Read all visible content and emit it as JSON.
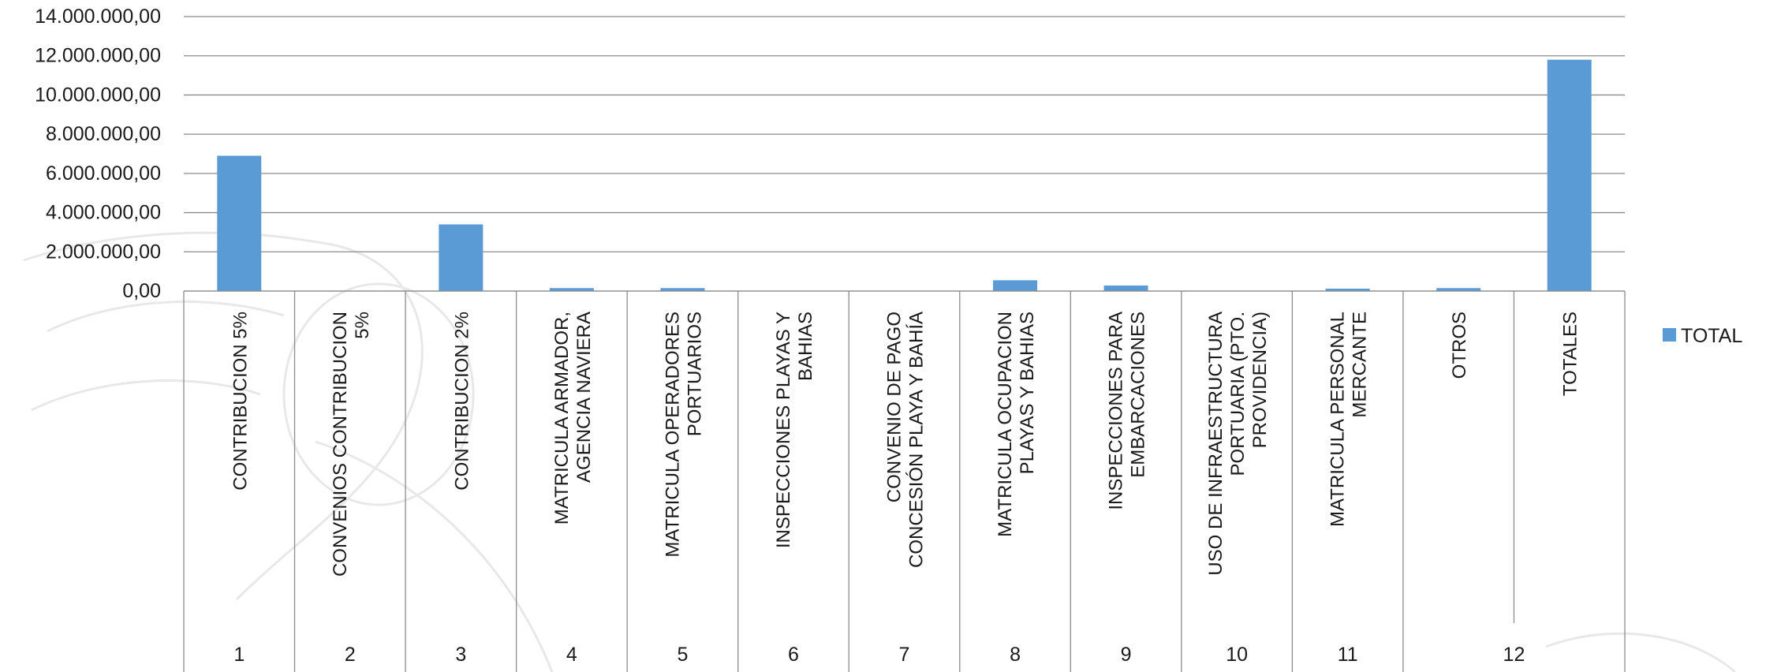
{
  "chart_data": {
    "type": "bar",
    "series": [
      {
        "name": "TOTAL",
        "color": "#5b9bd5",
        "values": [
          6900000,
          0,
          3400000,
          150000,
          150000,
          0,
          0,
          550000,
          280000,
          0,
          120000,
          150000,
          11800000
        ]
      }
    ],
    "categories": [
      {
        "group": "1",
        "label": [
          "CONTRIBUCION 5%"
        ]
      },
      {
        "group": "2",
        "label": [
          "CONVENIOS CONTRIBUCION",
          "5%"
        ]
      },
      {
        "group": "3",
        "label": [
          "CONTRIBUCION 2%"
        ]
      },
      {
        "group": "4",
        "label": [
          "MATRICULA ARMADOR,",
          "AGENCIA NAVIERA"
        ]
      },
      {
        "group": "5",
        "label": [
          "MATRICULA OPERADORES",
          "PORTUARIOS"
        ]
      },
      {
        "group": "6",
        "label": [
          "INSPECCIONES PLAYAS Y",
          "BAHIAS"
        ]
      },
      {
        "group": "7",
        "label": [
          "CONVENIO DE PAGO",
          "CONCESIÓN PLAYA Y BAHÍA"
        ]
      },
      {
        "group": "8",
        "label": [
          "MATRICULA OCUPACION",
          "PLAYAS Y BAHIAS"
        ]
      },
      {
        "group": "9",
        "label": [
          "INSPECCIONES PARA",
          "EMBARCACIONES"
        ]
      },
      {
        "group": "10",
        "label": [
          "USO DE INFRAESTRUCTURA",
          "PORTUARIA (PTO.",
          "PROVIDENCIA)"
        ]
      },
      {
        "group": "11",
        "label": [
          "MATRICULA PERSONAL",
          "MERCANTE"
        ]
      },
      {
        "group": "12",
        "label": [
          "OTROS"
        ]
      },
      {
        "group": "",
        "label": [
          "TOTALES"
        ]
      }
    ],
    "group_labels": [
      {
        "text": "1",
        "span": [
          0,
          0
        ]
      },
      {
        "text": "2",
        "span": [
          1,
          1
        ]
      },
      {
        "text": "3",
        "span": [
          2,
          2
        ]
      },
      {
        "text": "4",
        "span": [
          3,
          3
        ]
      },
      {
        "text": "5",
        "span": [
          4,
          4
        ]
      },
      {
        "text": "6",
        "span": [
          5,
          5
        ]
      },
      {
        "text": "7",
        "span": [
          6,
          6
        ]
      },
      {
        "text": "8",
        "span": [
          7,
          7
        ]
      },
      {
        "text": "9",
        "span": [
          8,
          8
        ]
      },
      {
        "text": "10",
        "span": [
          9,
          9
        ]
      },
      {
        "text": "11",
        "span": [
          10,
          10
        ]
      },
      {
        "text": "12",
        "span": [
          11,
          12
        ]
      }
    ],
    "yticks": [
      "0,00",
      "2.000.000,00",
      "4.000.000,00",
      "6.000.000,00",
      "8.000.000,00",
      "10.000.000,00",
      "12.000.000,00",
      "14.000.000,00"
    ],
    "ylim": [
      0,
      14000000
    ],
    "ytick_step": 2000000,
    "grid": true,
    "legend_position": "right",
    "title": "",
    "xlabel": "",
    "ylabel": ""
  }
}
